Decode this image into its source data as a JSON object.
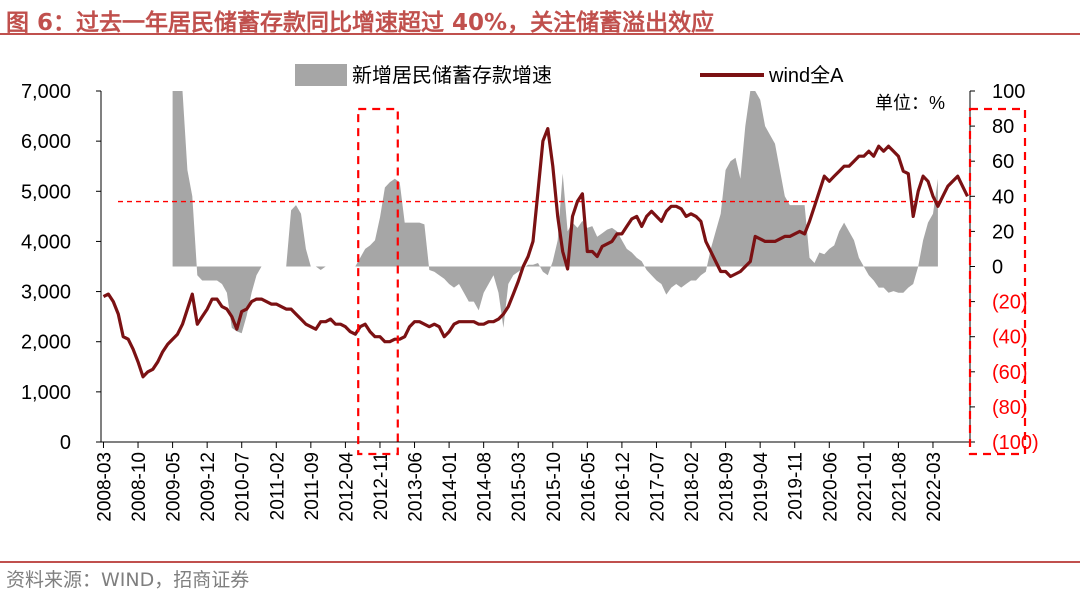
{
  "figure": {
    "title": "图 6：过去一年居民储蓄存款同比增速超过 40%，关注储蓄溢出效应",
    "source": "资料来源：WIND，招商证券"
  },
  "colors": {
    "title": "#c0504d",
    "line": "#7b1113",
    "area": "#a6a6a6",
    "highlight": "#ff0000",
    "axis_text": "#000000"
  },
  "chart_data": {
    "type": "area+line",
    "legend": {
      "position": "top",
      "items": [
        "新增居民储蓄存款增速",
        "wind全A"
      ]
    },
    "unit_label": "单位：%",
    "x_ticks": [
      "2008-03",
      "2008-10",
      "2009-05",
      "2009-12",
      "2010-07",
      "2011-02",
      "2011-09",
      "2012-04",
      "2012-11",
      "2013-06",
      "2014-01",
      "2014-08",
      "2015-03",
      "2015-10",
      "2016-05",
      "2016-12",
      "2017-07",
      "2018-02",
      "2018-09",
      "2019-04",
      "2019-11",
      "2020-06",
      "2021-01",
      "2021-08",
      "2022-03"
    ],
    "y_left": {
      "range": [
        0,
        7000
      ],
      "ticks": [
        "0",
        "1,000",
        "2,000",
        "3,000",
        "4,000",
        "5,000",
        "6,000",
        "7,000"
      ]
    },
    "y_right": {
      "range": [
        -100,
        100
      ],
      "ticks": [
        "(100)",
        "(80)",
        "(60)",
        "(40)",
        "(20)",
        "0",
        "20",
        "40",
        "60",
        "80",
        "100"
      ]
    },
    "reference_line": {
      "axis": "right",
      "value": 37
    },
    "highlight_box": {
      "from": "2012-07",
      "to": "2013-02"
    },
    "series": [
      {
        "name": "新增居民储蓄存款增速",
        "kind": "area",
        "axis": "right",
        "start": "2008-03",
        "values": [
          null,
          null,
          null,
          null,
          null,
          null,
          null,
          null,
          null,
          null,
          null,
          null,
          null,
          null,
          100,
          100,
          100,
          55,
          40,
          -5,
          -8,
          -8,
          -8,
          -8,
          -10,
          -15,
          -35,
          -37,
          -38,
          -28,
          -15,
          -5,
          0,
          0,
          0,
          0,
          0,
          0,
          32,
          35,
          30,
          10,
          0,
          0,
          -2,
          0,
          0,
          0,
          0,
          0,
          0,
          0,
          5,
          10,
          12,
          15,
          28,
          45,
          48,
          50,
          48,
          25,
          25,
          25,
          25,
          24,
          -2,
          -3,
          -5,
          -7,
          -10,
          -12,
          -10,
          -15,
          -20,
          -20,
          -25,
          -15,
          -10,
          -5,
          -15,
          -35,
          -10,
          -5,
          -3,
          -1,
          1,
          1,
          2,
          -3,
          -5,
          3,
          15,
          53,
          20,
          25,
          22,
          26,
          22,
          23,
          17,
          19,
          21,
          22,
          20,
          15,
          10,
          8,
          5,
          3,
          -2,
          -5,
          -8,
          -10,
          -16,
          -12,
          -10,
          -12,
          -10,
          -8,
          -8,
          -5,
          -3,
          10,
          20,
          30,
          55,
          60,
          62,
          50,
          80,
          100,
          100,
          95,
          80,
          75,
          70,
          55,
          40,
          35,
          35,
          35,
          35,
          5,
          2,
          8,
          7,
          10,
          12,
          20,
          25,
          20,
          15,
          5,
          0,
          -5,
          -8,
          -12,
          -12,
          -15,
          -14,
          -15,
          -15,
          -12,
          -10,
          0,
          15,
          25,
          30,
          50
        ]
      },
      {
        "name": "wind全A",
        "kind": "line",
        "axis": "left",
        "start": "2008-03",
        "values": [
          2900,
          2950,
          2800,
          2550,
          2100,
          2050,
          1850,
          1600,
          1300,
          1400,
          1450,
          1600,
          1800,
          1950,
          2050,
          2150,
          2350,
          2650,
          2950,
          2350,
          2500,
          2650,
          2850,
          2850,
          2700,
          2650,
          2500,
          2250,
          2600,
          2650,
          2800,
          2850,
          2850,
          2800,
          2750,
          2750,
          2700,
          2650,
          2650,
          2550,
          2450,
          2350,
          2300,
          2250,
          2400,
          2400,
          2450,
          2350,
          2350,
          2300,
          2200,
          2150,
          2300,
          2350,
          2200,
          2100,
          2100,
          2000,
          2000,
          2050,
          2050,
          2100,
          2300,
          2400,
          2400,
          2350,
          2300,
          2350,
          2300,
          2100,
          2200,
          2350,
          2400,
          2400,
          2400,
          2400,
          2350,
          2350,
          2400,
          2400,
          2450,
          2550,
          2700,
          2950,
          3200,
          3500,
          3700,
          4000,
          5000,
          6000,
          6250,
          5500,
          4500,
          3800,
          3450,
          4500,
          4800,
          4950,
          3800,
          3800,
          3700,
          3900,
          3950,
          4000,
          4150,
          4150,
          4300,
          4450,
          4500,
          4300,
          4500,
          4600,
          4500,
          4400,
          4600,
          4700,
          4700,
          4650,
          4500,
          4550,
          4500,
          4400,
          4000,
          3800,
          3600,
          3400,
          3400,
          3300,
          3350,
          3400,
          3500,
          3600,
          4100,
          4050,
          4000,
          4000,
          4000,
          4050,
          4100,
          4100,
          4150,
          4200,
          4150,
          4400,
          4700,
          5000,
          5300,
          5200,
          5300,
          5400,
          5500,
          5500,
          5600,
          5700,
          5700,
          5800,
          5700,
          5900,
          5800,
          5900,
          5800,
          5700,
          5400,
          5350,
          4500,
          5000,
          5300,
          5200,
          4900,
          4700,
          4900,
          5100,
          5200,
          5300,
          5100,
          4900
        ]
      }
    ]
  }
}
